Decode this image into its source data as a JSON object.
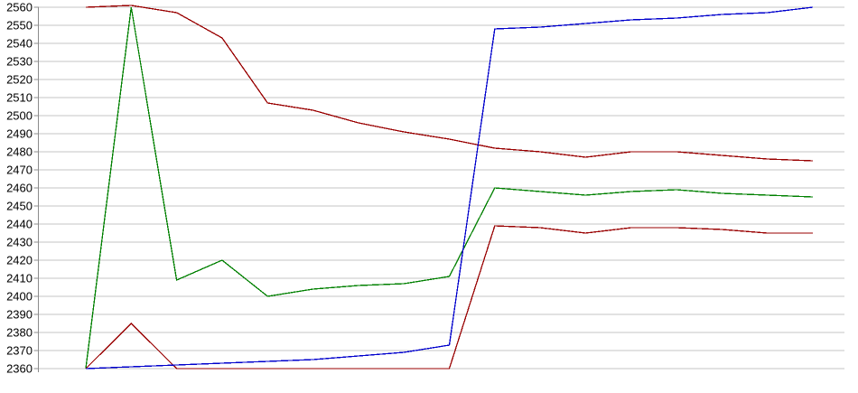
{
  "chart_data": {
    "type": "line",
    "title": "",
    "xlabel": "",
    "ylabel": "",
    "legend": "none",
    "grid": true,
    "x_axis": {
      "labels_visible": false,
      "num_points": 17
    },
    "y_axis": {
      "min": 2360,
      "max": 2560,
      "step": 10,
      "tick_labels": [
        "2560",
        "2550",
        "2540",
        "2530",
        "2520",
        "2510",
        "2500",
        "2490",
        "2480",
        "2470",
        "2460",
        "2450",
        "2440",
        "2430",
        "2420",
        "2410",
        "2400",
        "2390",
        "2380",
        "2370",
        "2360"
      ]
    },
    "series": [
      {
        "name": "red-upper",
        "color": "#990000",
        "values": [
          2560,
          2561,
          2557,
          2543,
          2507,
          2503,
          2496,
          2491,
          2487,
          2482,
          2480,
          2477,
          2480,
          2480,
          2478,
          2476,
          2475
        ]
      },
      {
        "name": "green",
        "color": "#008000",
        "values": [
          2360,
          2560,
          2409,
          2420,
          2400,
          2404,
          2406,
          2407,
          2411,
          2460,
          2458,
          2456,
          2458,
          2459,
          2457,
          2456,
          2455
        ]
      },
      {
        "name": "red-lower",
        "color": "#990000",
        "values": [
          2360,
          2385,
          2360,
          2360,
          2360,
          2360,
          2360,
          2360,
          2360,
          2439,
          2438,
          2435,
          2438,
          2438,
          2437,
          2435,
          2435
        ]
      },
      {
        "name": "blue",
        "color": "#0000CC",
        "values": [
          2360,
          2361,
          2362,
          2363,
          2364,
          2365,
          2367,
          2369,
          2373,
          2548,
          2549,
          2551,
          2553,
          2554,
          2556,
          2557,
          2560
        ]
      }
    ]
  },
  "colors": {
    "background": "#FFFFFF",
    "gridline": "#C6C6C6",
    "axis": "#8C8C8C",
    "tick": "#8C8C8C",
    "label": "#000000"
  }
}
